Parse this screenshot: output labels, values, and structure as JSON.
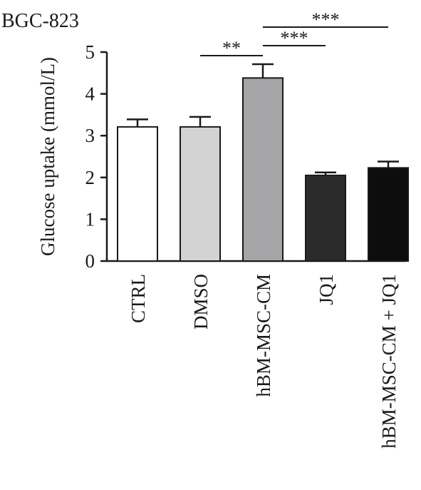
{
  "chart_data": {
    "type": "bar",
    "title": "BGC-823",
    "ylabel": "Glucose uptake (mmol/L)",
    "xlabel": "",
    "ylim": [
      0,
      5
    ],
    "yticks": [
      0,
      1,
      2,
      3,
      4,
      5
    ],
    "grid": false,
    "categories": [
      "CTRL",
      "DMSO",
      "hBM-MSC-CM",
      "JQ1",
      "hBM-MSC-CM + JQ1"
    ],
    "values": [
      3.21,
      3.21,
      4.38,
      2.05,
      2.23
    ],
    "errors": [
      0.18,
      0.24,
      0.33,
      0.07,
      0.15
    ],
    "colors": [
      "#ffffff",
      "#d3d3d3",
      "#a5a5a7",
      "#2b2b2b",
      "#0d0d0d"
    ],
    "significance": [
      {
        "from": 1,
        "to": 2,
        "label": "**"
      },
      {
        "from": 2,
        "to": 3,
        "label": "***"
      },
      {
        "from": 2,
        "to": 4,
        "label": "***"
      }
    ]
  }
}
